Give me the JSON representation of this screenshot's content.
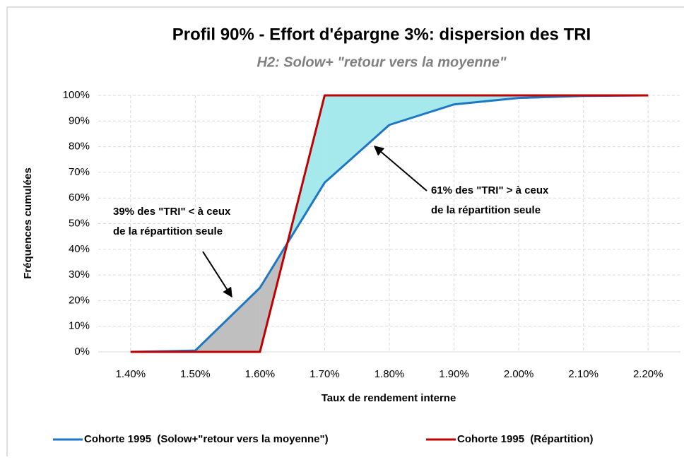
{
  "chart_data": {
    "type": "line",
    "title": "Profil 90% - Effort d'épargne 3%: dispersion des TRI",
    "subtitle": "H2: Solow+ \"retour vers la moyenne\"",
    "x_label": "Taux de rendement interne",
    "y_label": "Fréquences cumulées",
    "x": [
      1.4,
      1.5,
      1.6,
      1.7,
      1.8,
      1.9,
      2.0,
      2.1,
      2.2
    ],
    "series": [
      {
        "name": "Cohorte 1995  (Solow+\"retour vers la moyenne\")",
        "color": "#1f77c4",
        "values": [
          0,
          0.5,
          25,
          66,
          88.5,
          96.5,
          99,
          99.8,
          100
        ]
      },
      {
        "name": "Cohorte 1995  (Répartition)",
        "color": "#c00000",
        "values": [
          0,
          0,
          0,
          100,
          100,
          100,
          100,
          100,
          100
        ]
      }
    ],
    "fill_colors": [
      "#bfbfbf",
      "#a6e9ec"
    ],
    "xlim": [
      1.35,
      2.25
    ],
    "xticks": [
      {
        "value": 1.4,
        "label": "1.40%"
      },
      {
        "value": 1.5,
        "label": "1.50%"
      },
      {
        "value": 1.6,
        "label": "1.60%"
      },
      {
        "value": 1.7,
        "label": "1.70%"
      },
      {
        "value": 1.8,
        "label": "1.80%"
      },
      {
        "value": 1.9,
        "label": "1.90%"
      },
      {
        "value": 2.0,
        "label": "2.00%"
      },
      {
        "value": 2.1,
        "label": "2.10%"
      },
      {
        "value": 2.2,
        "label": "2.20%"
      }
    ],
    "ylim": [
      0,
      100
    ],
    "yticks": [
      {
        "value": 0,
        "label": "0%"
      },
      {
        "value": 10,
        "label": "10%"
      },
      {
        "value": 20,
        "label": "20%"
      },
      {
        "value": 30,
        "label": "30%"
      },
      {
        "value": 40,
        "label": "40%"
      },
      {
        "value": 50,
        "label": "50%"
      },
      {
        "value": 60,
        "label": "60%"
      },
      {
        "value": 70,
        "label": "70%"
      },
      {
        "value": 80,
        "label": "80%"
      },
      {
        "value": 90,
        "label": "90%"
      },
      {
        "value": 100,
        "label": "100%"
      }
    ],
    "grid": true,
    "legend": "bottom",
    "annotations": [
      {
        "lines": [
          "39% des \"TRI\" < à ceux",
          "de la répartition seule"
        ]
      },
      {
        "lines": [
          "61% des \"TRI\" > à ceux",
          "de la répartition seule"
        ]
      }
    ]
  }
}
